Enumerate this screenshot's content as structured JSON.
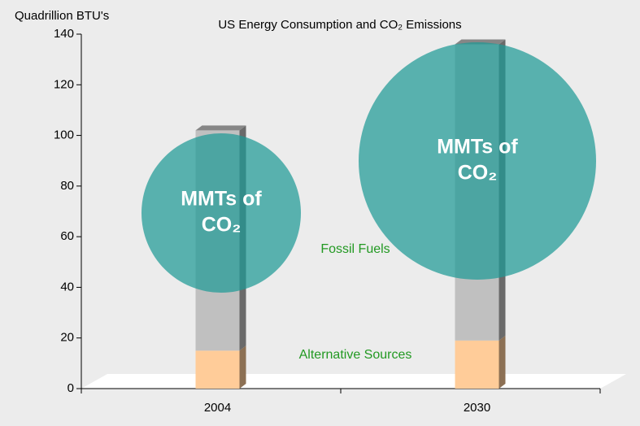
{
  "chart_data": {
    "type": "bar",
    "stacked": true,
    "title": "US Energy Consumption and CO₂ Emissions",
    "y_label": "Quadrillion BTU's",
    "categories": [
      "2004",
      "2030"
    ],
    "series": [
      {
        "name": "Alternative Sources",
        "color": "#ffcc99",
        "values": [
          15,
          19
        ]
      },
      {
        "name": "Fossil Fuels",
        "color": "#c0c0c0",
        "values": [
          87,
          117
        ]
      }
    ],
    "annotations": [
      {
        "line1": "MMTs of",
        "line2": "CO₂"
      },
      {
        "line1": "MMTs of",
        "line2": "CO₂"
      }
    ],
    "ylim": [
      0,
      140
    ],
    "yticks": [
      0,
      20,
      40,
      60,
      80,
      100,
      120,
      140
    ]
  }
}
